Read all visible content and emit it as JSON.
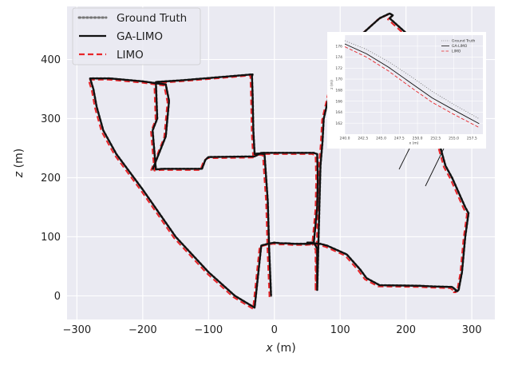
{
  "chart_data": {
    "type": "line",
    "xlabel": "x (m)",
    "ylabel": "z (m)",
    "xlim": [
      -315,
      335
    ],
    "ylim": [
      -40,
      490
    ],
    "xticks": [
      -300,
      -200,
      -100,
      0,
      100,
      200,
      300
    ],
    "yticks": [
      0,
      100,
      200,
      300,
      400
    ],
    "grid": true,
    "legend_position": "top-left",
    "series": [
      {
        "name": "Ground Truth",
        "color": "#777777",
        "style": "dotted",
        "offset": [
          0,
          0
        ],
        "x": [
          -5,
          -8,
          -10,
          -15,
          -25,
          -30,
          -32,
          -33,
          -34,
          -33,
          -140,
          -180,
          -178,
          -185,
          -180,
          -170,
          -110,
          -105,
          -100,
          -30,
          -20,
          20,
          60,
          65,
          66,
          65,
          60,
          50,
          50,
          55,
          60,
          65,
          65,
          65,
          65,
          70,
          73,
          75,
          100,
          130,
          145,
          150,
          160,
          175,
          180,
          175,
          200,
          220,
          230,
          240,
          250,
          260,
          270,
          290,
          295,
          290,
          285,
          280,
          278,
          275,
          278,
          270,
          240,
          220,
          160,
          140,
          130,
          110,
          90,
          80,
          70,
          60,
          50,
          40,
          30,
          20,
          10,
          0,
          -10,
          -20,
          -30,
          -60,
          -100,
          -150,
          -200,
          -240,
          -260,
          -270,
          -275,
          -280,
          -275,
          -260,
          -250,
          -200,
          -180,
          -165,
          -160,
          -165,
          -185
        ],
        "y": [
          0,
          80,
          160,
          240,
          241,
          240,
          280,
          340,
          372,
          375,
          365,
          362,
          300,
          280,
          214,
          215,
          215,
          230,
          235,
          236,
          242,
          242,
          242,
          240,
          200,
          150,
          90,
          90,
          90,
          90,
          90,
          80,
          50,
          25,
          10,
          220,
          260,
          300,
          420,
          440,
          455,
          460,
          470,
          478,
          475,
          470,
          445,
          420,
          400,
          330,
          260,
          220,
          200,
          150,
          140,
          100,
          40,
          10,
          8,
          8,
          8,
          15,
          16,
          17,
          18,
          30,
          45,
          70,
          80,
          85,
          88,
          89,
          88,
          88,
          88,
          89,
          89,
          90,
          88,
          85,
          -20,
          0,
          40,
          100,
          180,
          240,
          280,
          320,
          350,
          368,
          368,
          368,
          368,
          363,
          360,
          358,
          330,
          270,
          214
        ]
      },
      {
        "name": "GA-LIMO",
        "color": "#111111",
        "style": "solid",
        "offset": [
          0,
          0
        ],
        "x": [
          -5,
          -8,
          -10,
          -15,
          -25,
          -30,
          -32,
          -33,
          -34,
          -33,
          -140,
          -180,
          -178,
          -185,
          -180,
          -170,
          -110,
          -105,
          -100,
          -30,
          -20,
          20,
          60,
          65,
          66,
          65,
          60,
          50,
          50,
          55,
          60,
          65,
          65,
          65,
          65,
          70,
          73,
          75,
          100,
          130,
          145,
          150,
          160,
          175,
          180,
          175,
          200,
          220,
          230,
          240,
          250,
          260,
          270,
          290,
          295,
          290,
          285,
          280,
          278,
          275,
          278,
          270,
          240,
          220,
          160,
          140,
          130,
          110,
          90,
          80,
          70,
          60,
          50,
          40,
          30,
          20,
          10,
          0,
          -10,
          -20,
          -30,
          -60,
          -100,
          -150,
          -200,
          -240,
          -260,
          -270,
          -275,
          -280,
          -275,
          -260,
          -250,
          -200,
          -180,
          -165,
          -160,
          -165,
          -185
        ],
        "y": [
          0,
          80,
          160,
          240,
          241,
          240,
          280,
          340,
          372,
          375,
          365,
          362,
          300,
          280,
          214,
          215,
          215,
          230,
          235,
          236,
          242,
          242,
          242,
          240,
          200,
          150,
          90,
          90,
          90,
          90,
          90,
          80,
          50,
          25,
          10,
          220,
          260,
          300,
          420,
          440,
          455,
          460,
          470,
          478,
          475,
          470,
          445,
          420,
          400,
          330,
          260,
          220,
          200,
          150,
          140,
          100,
          40,
          10,
          8,
          8,
          8,
          15,
          16,
          17,
          18,
          30,
          45,
          70,
          80,
          85,
          88,
          89,
          88,
          88,
          88,
          89,
          89,
          90,
          88,
          85,
          -20,
          0,
          40,
          100,
          180,
          240,
          280,
          320,
          350,
          368,
          368,
          368,
          368,
          363,
          360,
          358,
          330,
          270,
          214
        ]
      },
      {
        "name": "LIMO",
        "color": "#e8262a",
        "style": "dashed",
        "offset": [
          -2.5,
          -2
        ],
        "x": [
          -5,
          -8,
          -10,
          -15,
          -25,
          -30,
          -32,
          -33,
          -34,
          -33,
          -140,
          -180,
          -178,
          -185,
          -180,
          -170,
          -110,
          -105,
          -100,
          -30,
          -20,
          20,
          60,
          65,
          66,
          65,
          60,
          50,
          50,
          55,
          60,
          65,
          65,
          65,
          65,
          70,
          73,
          75,
          100,
          130,
          145,
          150,
          160,
          175,
          180,
          175,
          200,
          220,
          230,
          240,
          250,
          260,
          270,
          290,
          295,
          290,
          285,
          280,
          278,
          275,
          278,
          270,
          240,
          220,
          160,
          140,
          130,
          110,
          90,
          80,
          70,
          60,
          50,
          40,
          30,
          20,
          10,
          0,
          -10,
          -20,
          -30,
          -60,
          -100,
          -150,
          -200,
          -240,
          -260,
          -270,
          -275,
          -280,
          -275,
          -260,
          -250,
          -200,
          -180,
          -165,
          -160,
          -165,
          -185
        ],
        "y": [
          0,
          80,
          160,
          240,
          241,
          240,
          280,
          340,
          372,
          375,
          365,
          362,
          300,
          280,
          214,
          215,
          215,
          230,
          235,
          236,
          242,
          242,
          242,
          240,
          200,
          150,
          90,
          90,
          90,
          90,
          90,
          80,
          50,
          25,
          10,
          220,
          260,
          300,
          420,
          440,
          455,
          460,
          470,
          478,
          475,
          470,
          445,
          420,
          400,
          330,
          260,
          220,
          200,
          150,
          140,
          100,
          40,
          10,
          8,
          8,
          8,
          15,
          16,
          17,
          18,
          30,
          45,
          70,
          80,
          85,
          88,
          89,
          88,
          88,
          88,
          89,
          89,
          90,
          88,
          85,
          -20,
          0,
          40,
          100,
          180,
          240,
          280,
          320,
          350,
          368,
          368,
          368,
          368,
          363,
          360,
          358,
          330,
          270,
          214
        ]
      }
    ],
    "inset": {
      "xlabel": "x (m)",
      "ylabel": "z (m)",
      "xlim": [
        240,
        259
      ],
      "ylim": [
        160,
        178
      ],
      "xticks": [
        240.0,
        242.5,
        245.0,
        247.5,
        250.0,
        252.5,
        255.0,
        257.5
      ],
      "xtick_labels": [
        "240.0",
        "242.5",
        "245.0",
        "247.5",
        "250.0",
        "252.5",
        "255.0",
        "257.5"
      ],
      "yticks": [
        162,
        164,
        166,
        168,
        170,
        172,
        174,
        176
      ],
      "legend_position": "top-right",
      "series": [
        {
          "name": "Ground Truth",
          "color": "#777777",
          "style": "dotted",
          "x": [
            240,
            243,
            246,
            249,
            252,
            255,
            258.5
          ],
          "y": [
            177,
            175.4,
            173.2,
            170.6,
            167.8,
            165.4,
            162.8
          ]
        },
        {
          "name": "GA-LIMO",
          "color": "#111111",
          "style": "solid",
          "x": [
            240,
            243,
            246,
            249,
            252,
            255,
            258.5
          ],
          "y": [
            176.4,
            174.6,
            172.2,
            169.4,
            166.6,
            164.4,
            161.9
          ]
        },
        {
          "name": "LIMO",
          "color": "#e8262a",
          "style": "dashed",
          "x": [
            240,
            243,
            246,
            249,
            252,
            255,
            258.5
          ],
          "y": [
            175.9,
            174.0,
            171.5,
            168.6,
            165.8,
            163.6,
            161.2
          ]
        }
      ]
    }
  }
}
